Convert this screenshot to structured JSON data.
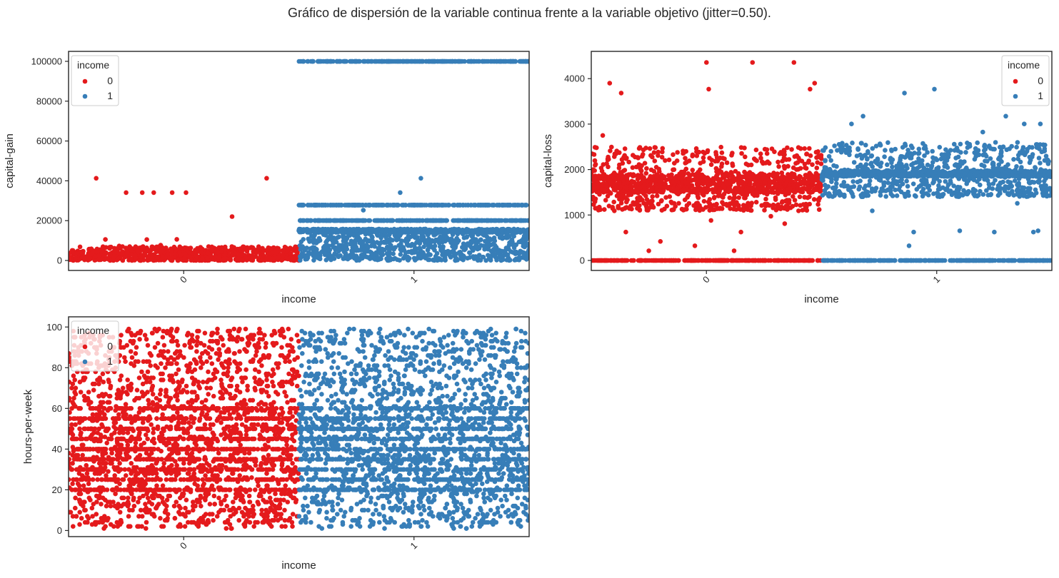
{
  "figure": {
    "title": "Gráfico de dispersión de la variable continua frente a la variable objetivo (jitter=0.50)."
  },
  "colors": {
    "class_0": "#e41a1c",
    "class_1": "#377eb8",
    "axes_edge": "#262626",
    "background": "#ffffff"
  },
  "chart_data": [
    {
      "type": "scatter",
      "xlabel": "income",
      "ylabel": "capital-gain",
      "categories": [
        "0",
        "1"
      ],
      "jitter": 0.5,
      "ylim": [
        -5000,
        105000
      ],
      "yticks": [
        0,
        20000,
        40000,
        60000,
        80000,
        100000
      ],
      "ytick_labels": [
        "0",
        "20000",
        "40000",
        "60000",
        "80000",
        "100000"
      ],
      "grid": false,
      "legend": {
        "title": "income",
        "placement": "upper-left",
        "entries": [
          "0",
          "1"
        ]
      },
      "series": [
        {
          "name": "0",
          "category": "0",
          "points": [
            [
              -0.38,
              41310
            ],
            [
              -0.25,
              34095
            ],
            [
              -0.18,
              34095
            ],
            [
              -0.13,
              34095
            ],
            [
              -0.05,
              34095
            ],
            [
              0.01,
              34095
            ],
            [
              0.21,
              22040
            ],
            [
              0.36,
              41310
            ],
            [
              -0.34,
              10566
            ],
            [
              -0.16,
              10520
            ],
            [
              -0.03,
              10605
            ],
            [
              -0.45,
              6849
            ],
            [
              -0.28,
              7298
            ],
            [
              -0.1,
              7688
            ],
            [
              0.12,
              5178
            ],
            [
              0.3,
              6418
            ],
            [
              0.45,
              5013
            ],
            [
              -0.2,
              4787
            ],
            [
              0.05,
              3818
            ],
            [
              0.25,
              2885
            ]
          ],
          "dense_bands": [
            [
              0,
              7000
            ]
          ]
        },
        {
          "name": "1",
          "category": "1",
          "points": [
            [
              1.03,
              41310
            ],
            [
              0.94,
              34095
            ],
            [
              1.42,
              20051
            ],
            [
              0.58,
              27828
            ],
            [
              1.2,
              27828
            ],
            [
              1.38,
              15024
            ],
            [
              0.72,
              15024
            ],
            [
              0.85,
              27828
            ],
            [
              1.12,
              20051
            ],
            [
              1.3,
              27828
            ],
            [
              0.65,
              20051
            ],
            [
              1.05,
              15831
            ],
            [
              0.78,
              25236
            ]
          ],
          "dense_bands": [
            [
              99999,
              99999
            ],
            [
              27828,
              27828
            ],
            [
              20051,
              20051
            ],
            [
              14084,
              15831
            ],
            [
              0,
              13550
            ]
          ]
        }
      ]
    },
    {
      "type": "scatter",
      "xlabel": "income",
      "ylabel": "capital-loss",
      "categories": [
        "0",
        "1"
      ],
      "jitter": 0.5,
      "ylim": [
        -220,
        4600
      ],
      "yticks": [
        0,
        1000,
        2000,
        3000,
        4000
      ],
      "ytick_labels": [
        "0",
        "1000",
        "2000",
        "3000",
        "4000"
      ],
      "grid": false,
      "legend": {
        "title": "income",
        "placement": "upper-right",
        "entries": [
          "0",
          "1"
        ]
      },
      "series": [
        {
          "name": "0",
          "category": "0",
          "points": [
            [
              -0.45,
              2750
            ],
            [
              -0.42,
              3900
            ],
            [
              -0.37,
              3683
            ],
            [
              0.0,
              4356
            ],
            [
              0.01,
              3770
            ],
            [
              0.2,
              4356
            ],
            [
              0.38,
              4356
            ],
            [
              0.45,
              3770
            ],
            [
              0.47,
              3900
            ],
            [
              -0.35,
              625
            ],
            [
              -0.25,
              213
            ],
            [
              -0.2,
              419
            ],
            [
              -0.05,
              323
            ],
            [
              0.02,
              880
            ],
            [
              0.15,
              625
            ],
            [
              0.28,
              974
            ],
            [
              0.34,
              810
            ],
            [
              0.4,
              1092
            ],
            [
              0.12,
              213
            ],
            [
              -0.4,
              1092
            ],
            [
              -0.12,
              1258
            ],
            [
              0.3,
              1380
            ]
          ],
          "dense_bands": [
            [
              0,
              0
            ],
            [
              1500,
              1900
            ],
            [
              1100,
              2500
            ]
          ]
        },
        {
          "name": "1",
          "category": "1",
          "points": [
            [
              0.63,
              3004
            ],
            [
              0.68,
              3175
            ],
            [
              0.86,
              3683
            ],
            [
              0.99,
              3770
            ],
            [
              1.2,
              2824
            ],
            [
              1.3,
              3175
            ],
            [
              1.38,
              3004
            ],
            [
              1.45,
              3004
            ],
            [
              0.88,
              323
            ],
            [
              0.9,
              625
            ],
            [
              1.1,
              653
            ],
            [
              1.25,
              625
            ],
            [
              1.42,
              625
            ],
            [
              1.44,
              653
            ],
            [
              0.72,
              1092
            ],
            [
              1.35,
              1258
            ]
          ],
          "dense_bands": [
            [
              0,
              0
            ],
            [
              1848,
              1977
            ],
            [
              1400,
              2600
            ]
          ]
        }
      ]
    },
    {
      "type": "scatter",
      "xlabel": "income",
      "ylabel": "hours-per-week",
      "categories": [
        "0",
        "1"
      ],
      "jitter": 0.5,
      "ylim": [
        -3,
        105
      ],
      "yticks": [
        0,
        20,
        40,
        60,
        80,
        100
      ],
      "ytick_labels": [
        "0",
        "20",
        "40",
        "60",
        "80",
        "100"
      ],
      "grid": false,
      "legend": {
        "title": "income",
        "placement": "upper-left",
        "entries": [
          "0",
          "1"
        ]
      },
      "series": [
        {
          "name": "0",
          "category": "0",
          "points": [],
          "dense_bands": [
            [
              1,
              99
            ]
          ]
        },
        {
          "name": "1",
          "category": "1",
          "points": [],
          "dense_bands": [
            [
              1,
              99
            ]
          ]
        }
      ]
    }
  ]
}
